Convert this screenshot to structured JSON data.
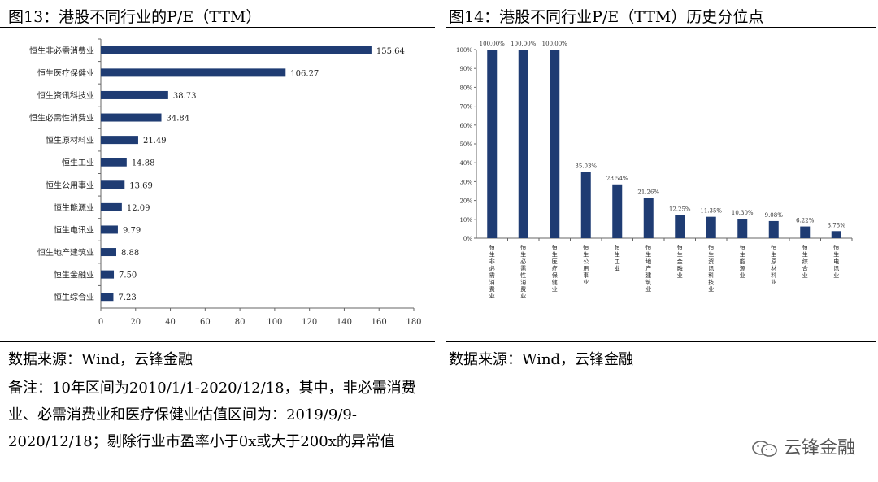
{
  "left": {
    "title": "图13：港股不同行业的P/E（TTM）",
    "source": "数据来源：Wind，云锋金融",
    "note": "备注：10年区间为2010/1/1-2020/12/18，其中，非必需消费业、必需消费业和医疗保健业估值区间为：2019/9/9-2020/12/18；剔除行业市盈率小于0x或大于200x的异常值"
  },
  "right": {
    "title": "图14：港股不同行业P/E（TTM）历史分位点",
    "source": "数据来源：Wind，云锋金融"
  },
  "brand": {
    "text": "云锋金融"
  },
  "chart_data": [
    {
      "type": "bar",
      "orientation": "horizontal",
      "categories": [
        "恒生非必需消费业",
        "恒生医疗保健业",
        "恒生资讯科技业",
        "恒生必需性消费业",
        "恒生原材料业",
        "恒生工业",
        "恒生公用事业",
        "恒生能源业",
        "恒生电讯业",
        "恒生地产建筑业",
        "恒生金融业",
        "恒生综合业"
      ],
      "values": [
        155.64,
        106.27,
        38.73,
        34.84,
        21.49,
        14.88,
        13.69,
        12.09,
        9.79,
        8.88,
        7.5,
        7.23
      ],
      "value_labels": [
        "155.64",
        "106.27",
        "38.73",
        "34.84",
        "21.49",
        "14.88",
        "13.69",
        "12.09",
        "9.79",
        "8.88",
        "7.50",
        "7.23"
      ],
      "xlim": [
        0,
        180
      ],
      "xticks": [
        0,
        20,
        40,
        60,
        80,
        100,
        120,
        140,
        160,
        180
      ],
      "color": "#1f3c73"
    },
    {
      "type": "bar",
      "orientation": "vertical",
      "categories": [
        "恒生非必需消费业",
        "恒生必需性消费业",
        "恒生医疗保健业",
        "恒生公用事业",
        "恒生工业",
        "恒生地产建筑业",
        "恒生金融业",
        "恒生资讯科技业",
        "恒生能源业",
        "恒生原材料业",
        "恒生综合业",
        "恒生电讯业"
      ],
      "values": [
        100.0,
        100.0,
        100.0,
        35.03,
        28.54,
        21.26,
        12.25,
        11.35,
        10.3,
        9.08,
        6.22,
        3.75
      ],
      "value_labels": [
        "100.00%",
        "100.00%",
        "100.00%",
        "35.03%",
        "28.54%",
        "21.26%",
        "12.25%",
        "11.35%",
        "10.30%",
        "9.08%",
        "6.22%",
        "3.75%"
      ],
      "ylim": [
        0,
        100
      ],
      "yticks": [
        "0%",
        "10%",
        "20%",
        "30%",
        "40%",
        "50%",
        "60%",
        "70%",
        "80%",
        "90%",
        "100%"
      ],
      "color": "#1f3c73"
    }
  ]
}
